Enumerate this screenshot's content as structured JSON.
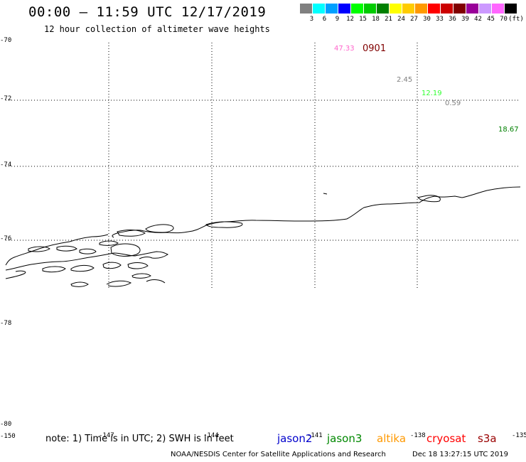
{
  "header": {
    "title": "00:00 – 11:59 UTC 12/17/2019",
    "subtitle": "12 hour collection of altimeter wave heights"
  },
  "color_scale": {
    "unit": "(ft)",
    "bins": [
      {
        "label": "3",
        "color": "#808080"
      },
      {
        "label": "6",
        "color": "#00ffff"
      },
      {
        "label": "9",
        "color": "#00a0ff"
      },
      {
        "label": "12",
        "color": "#0000ff"
      },
      {
        "label": "15",
        "color": "#00ff00"
      },
      {
        "label": "18",
        "color": "#00cc00"
      },
      {
        "label": "21",
        "color": "#008000"
      },
      {
        "label": "24",
        "color": "#ffff00"
      },
      {
        "label": "27",
        "color": "#ffcc00"
      },
      {
        "label": "30",
        "color": "#ff9900"
      },
      {
        "label": "33",
        "color": "#ff0000"
      },
      {
        "label": "36",
        "color": "#cc0000"
      },
      {
        "label": "39",
        "color": "#800000"
      },
      {
        "label": "42",
        "color": "#990099"
      },
      {
        "label": "45",
        "color": "#cc99ff"
      },
      {
        "label": "70",
        "color": "#ff66ff"
      },
      {
        "label": "",
        "color": "#000000"
      }
    ]
  },
  "axes": {
    "lat_labels": [
      "-70",
      "-72",
      "-74",
      "-76",
      "-78",
      "-80"
    ],
    "lon_labels": [
      "-150",
      "-147",
      "-144",
      "-141",
      "-138",
      "-135"
    ]
  },
  "observations": [
    {
      "text": "47.33",
      "color": "#ff66cc"
    },
    {
      "text": "0901",
      "color": "#800000"
    },
    {
      "text": "2.45",
      "color": "#808080"
    },
    {
      "text": "12.19",
      "color": "#33ff33"
    },
    {
      "text": "0.59",
      "color": "#808080"
    },
    {
      "text": "18.67",
      "color": "#008000"
    }
  ],
  "footer": {
    "note": "note:  1) Time is in UTC;  2) SWH is in feet",
    "satellites": [
      {
        "name": "jason2",
        "color": "#0000cc"
      },
      {
        "name": "jason3",
        "color": "#008800"
      },
      {
        "name": "altika",
        "color": "#ff9900"
      },
      {
        "name": "cryosat",
        "color": "#ff0000"
      },
      {
        "name": "s3a",
        "color": "#990000"
      }
    ],
    "credit": "NOAA/NESDIS Center for Satellite Applications and Research",
    "timestamp": "Dec 18 13:27:15 UTC 2019"
  }
}
